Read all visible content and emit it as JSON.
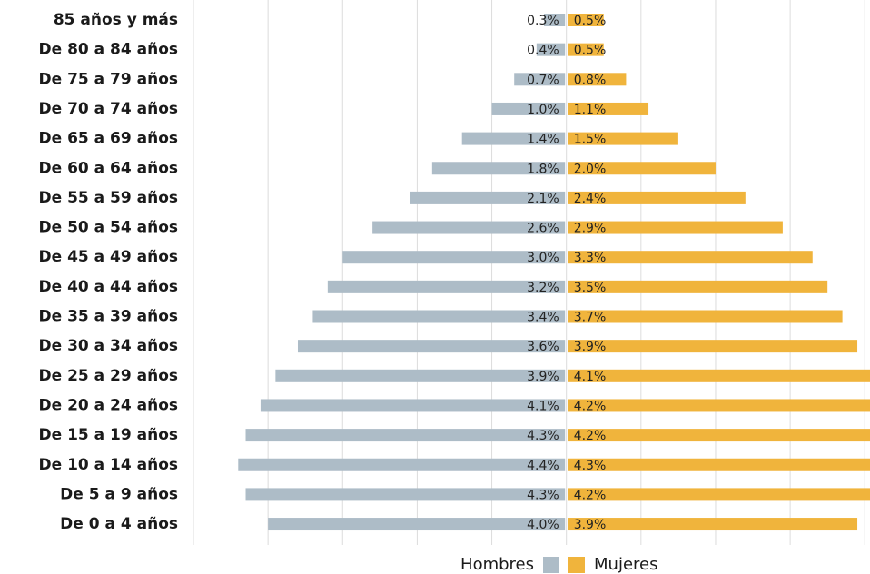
{
  "chart_data": {
    "type": "pyramid",
    "categories": [
      "85 años y más",
      "De 80 a 84 años",
      "De 75 a 79 años",
      "De 70 a 74 años",
      "De 65 a 69 años",
      "De 60 a 64 años",
      "De 55 a 59 años",
      "De 50 a 54 años",
      "De 45 a 49 años",
      "De 40 a 44 años",
      "De 35 a 39 años",
      "De 30 a 34 años",
      "De 25 a 29 años",
      "De 20 a 24 años",
      "De 15 a 19 años",
      "De 10 a 14 años",
      "De 5 a 9 años",
      "De 0 a 4 años"
    ],
    "series": [
      {
        "name": "Hombres",
        "color": "#adbcc7",
        "side": "left",
        "values": [
          0.3,
          0.4,
          0.7,
          1.0,
          1.4,
          1.8,
          2.1,
          2.6,
          3.0,
          3.2,
          3.4,
          3.6,
          3.9,
          4.1,
          4.3,
          4.4,
          4.3,
          4.0
        ],
        "value_labels": [
          "0.3%",
          "0.4%",
          "0.7%",
          "1.0%",
          "1.4%",
          "1.8%",
          "2.1%",
          "2.6%",
          "3.0%",
          "3.2%",
          "3.4%",
          "3.6%",
          "3.9%",
          "4.1%",
          "4.3%",
          "4.4%",
          "4.3%",
          "4.0%"
        ]
      },
      {
        "name": "Mujeres",
        "color": "#f0b43c",
        "side": "right",
        "values": [
          0.5,
          0.5,
          0.8,
          1.1,
          1.5,
          2.0,
          2.4,
          2.9,
          3.3,
          3.5,
          3.7,
          3.9,
          4.1,
          4.2,
          4.2,
          4.3,
          4.2,
          3.9
        ],
        "value_labels": [
          "0.5%",
          "0.5%",
          "0.8%",
          "1.1%",
          "1.5%",
          "2.0%",
          "2.4%",
          "2.9%",
          "3.3%",
          "3.5%",
          "3.7%",
          "3.9%",
          "4.1%",
          "4.2%",
          "4.2%",
          "4.3%",
          "4.2%",
          "3.9%"
        ]
      }
    ],
    "xlim": [
      -5,
      4.07
    ],
    "xticks": [
      -5,
      -4,
      -3,
      -2,
      -1,
      0,
      1,
      2,
      3,
      4
    ],
    "grid": true
  }
}
